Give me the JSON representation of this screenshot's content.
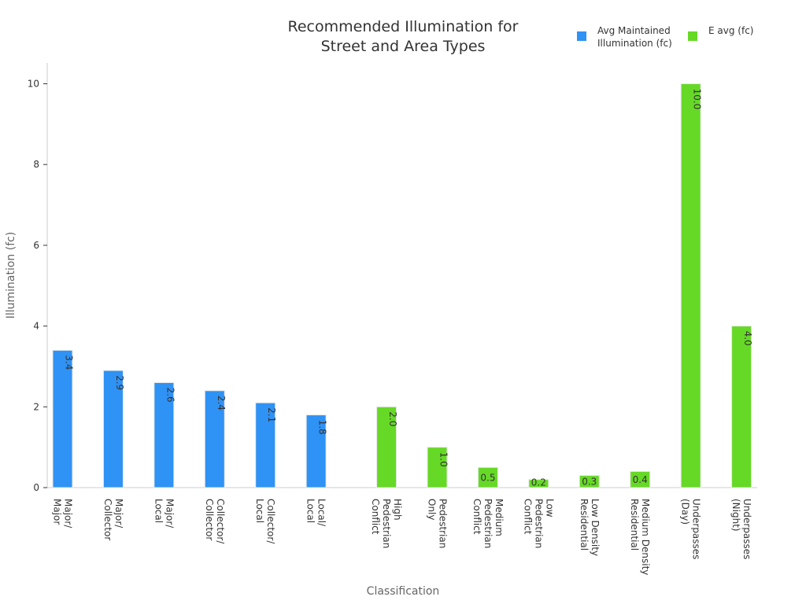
{
  "chart_data": {
    "type": "bar",
    "title_lines": [
      "Recommended Illumination for",
      "Street and Area Types"
    ],
    "xlabel": "Classification",
    "ylabel": "Illumination (fc)",
    "ylim": [
      0,
      10.5
    ],
    "yticks": [
      0,
      2,
      4,
      6,
      8,
      10
    ],
    "grid": false,
    "legend_position": "top-right",
    "categories": [
      [
        "Major/",
        "Major"
      ],
      [
        "Major/",
        "Collector"
      ],
      [
        "Major/",
        "Local"
      ],
      [
        "Collector/",
        "Collector"
      ],
      [
        "Collector/",
        "Local"
      ],
      [
        "Local/",
        "Local"
      ],
      [
        "High",
        "Pedestrian",
        "Conflict"
      ],
      [
        "Pedestrian",
        "Only"
      ],
      [
        "Medium",
        "Pedestrian",
        "Conflict"
      ],
      [
        "Low",
        "Pedestrian",
        "Conflict"
      ],
      [
        "Low Density",
        "Residential"
      ],
      [
        "Medium Density",
        "Residential"
      ],
      [
        "Underpasses",
        "(Day)"
      ],
      [
        "Underpasses",
        "(Night)"
      ]
    ],
    "series": [
      {
        "name_lines": [
          "Avg Maintained",
          "Illumination (fc)"
        ],
        "color": "#2f92f5",
        "values": [
          3.4,
          2.9,
          2.6,
          2.4,
          2.1,
          1.8,
          null,
          null,
          null,
          null,
          null,
          null,
          null,
          null
        ],
        "labels": [
          "3.4",
          "2.9",
          "2.6",
          "2.4",
          "2.1",
          "1.8",
          null,
          null,
          null,
          null,
          null,
          null,
          null,
          null
        ]
      },
      {
        "name_lines": [
          "E avg (fc)"
        ],
        "color": "#66d926",
        "values": [
          null,
          null,
          null,
          null,
          null,
          null,
          2.0,
          1.0,
          0.5,
          0.2,
          0.3,
          0.4,
          10.0,
          4.0
        ],
        "labels": [
          null,
          null,
          null,
          null,
          null,
          null,
          "2.0",
          "1.0",
          "0.5",
          "0.2",
          "0.3",
          "0.4",
          "10.0",
          "4.0"
        ]
      }
    ]
  }
}
